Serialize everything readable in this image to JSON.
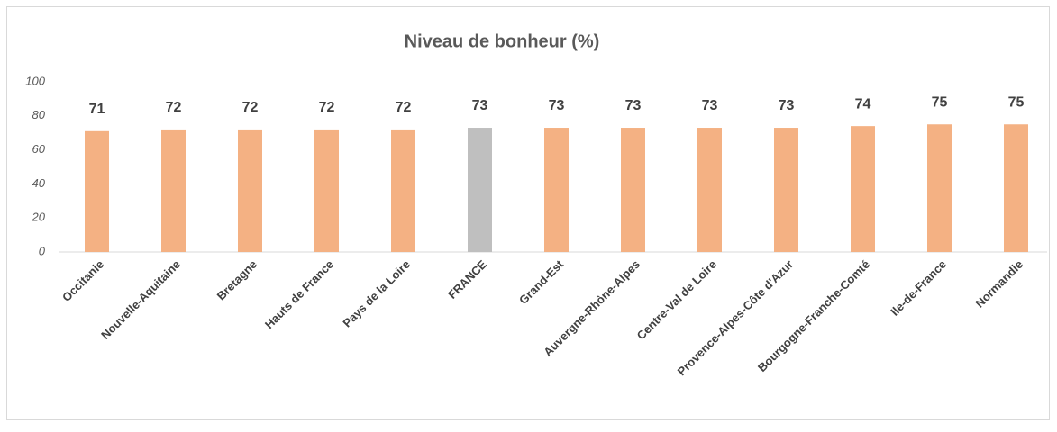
{
  "chart_data": {
    "type": "bar",
    "title": "Niveau de bonheur (%)",
    "categories": [
      "Occitanie",
      "Nouvelle-Aquitaine",
      "Bretagne",
      "Hauts de France",
      "Pays de la Loire",
      "FRANCE",
      "Grand-Est",
      "Auvergne-Rhône-Alpes",
      "Centre-Val de Loire",
      "Provence-Alpes-Côte d'Azur",
      "Bourgogne-Franche-Comté",
      "Ile-de-France",
      "Normandie"
    ],
    "values": [
      71,
      72,
      72,
      72,
      72,
      73,
      73,
      73,
      73,
      73,
      74,
      75,
      75
    ],
    "colors": [
      "#F4B183",
      "#F4B183",
      "#F4B183",
      "#F4B183",
      "#F4B183",
      "#BFBFBF",
      "#F4B183",
      "#F4B183",
      "#F4B183",
      "#F4B183",
      "#F4B183",
      "#F4B183",
      "#F4B183"
    ],
    "ylim": [
      0,
      100
    ],
    "yticks": [
      0,
      20,
      40,
      60,
      80,
      100
    ],
    "grid": false
  }
}
